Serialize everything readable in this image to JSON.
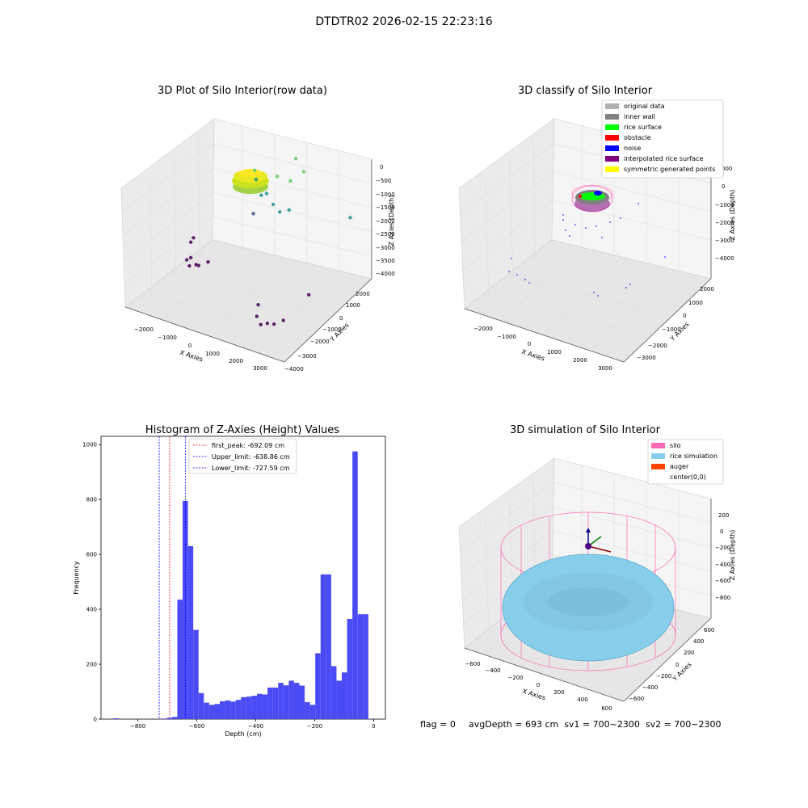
{
  "suptitle": "DTDTR02 2026-02-15 22:23:16",
  "chart_data": [
    {
      "type": "scatter",
      "title": "3D Plot of Silo Interior(row data)",
      "xlabel": "X Axies",
      "ylabel": "Y Axies",
      "zlabel": "Z Axies (Depth)",
      "x_ticks": [
        "−2000",
        "−1000",
        "0",
        "1000",
        "2000",
        "3000"
      ],
      "y_ticks": [
        "−4000",
        "−3000",
        "−2000",
        "−1000",
        "0",
        "1000",
        "2000"
      ],
      "z_ticks": [
        "0",
        "−500",
        "−1000",
        "−1500",
        "−2000",
        "−2500",
        "−3000",
        "−3500",
        "−4000"
      ],
      "xlim": [
        -2500,
        3500
      ],
      "ylim": [
        -4000,
        2500
      ],
      "zlim": [
        -4200,
        200
      ],
      "colormap": [
        "#440154",
        "#3b528b",
        "#21918c",
        "#5ec962",
        "#fde725"
      ],
      "dense_cluster": {
        "center_x": 500,
        "center_y": 500,
        "depth_range": [
          -800,
          -400
        ],
        "color": "#fde725"
      },
      "points": [
        {
          "x": -1900,
          "y": -600,
          "z": -3900
        },
        {
          "x": -1800,
          "y": -500,
          "z": -3850
        },
        {
          "x": -1700,
          "y": -800,
          "z": -3950
        },
        {
          "x": -1500,
          "y": -700,
          "z": -3900
        },
        {
          "x": -1300,
          "y": -900,
          "z": -3800
        },
        {
          "x": -1200,
          "y": -400,
          "z": -3850
        },
        {
          "x": -1900,
          "y": -300,
          "z": -3500
        },
        {
          "x": -1850,
          "y": -200,
          "z": -3400
        },
        {
          "x": 1700,
          "y": -2500,
          "z": -3900
        },
        {
          "x": 2000,
          "y": -2800,
          "z": -3950
        },
        {
          "x": 2400,
          "y": -2600,
          "z": -3900
        },
        {
          "x": 2600,
          "y": -2300,
          "z": -3850
        },
        {
          "x": 2300,
          "y": -2900,
          "z": -3800
        },
        {
          "x": 1600,
          "y": -2200,
          "z": -3700
        },
        {
          "x": 2900,
          "y": -1000,
          "z": -3500
        },
        {
          "x": -200,
          "y": 1000,
          "z": -2700
        },
        {
          "x": 300,
          "y": 600,
          "z": -1900
        },
        {
          "x": 600,
          "y": 400,
          "z": -1700
        },
        {
          "x": 900,
          "y": 300,
          "z": -1900
        },
        {
          "x": 1200,
          "y": 200,
          "z": -2000
        },
        {
          "x": 1500,
          "y": 300,
          "z": -1900
        },
        {
          "x": 0,
          "y": 800,
          "z": -1600
        },
        {
          "x": -100,
          "y": 900,
          "z": -1400
        },
        {
          "x": 800,
          "y": 800,
          "z": -1300
        },
        {
          "x": 1400,
          "y": 600,
          "z": -1200
        },
        {
          "x": 3200,
          "y": 1500,
          "z": -2100
        },
        {
          "x": 1300,
          "y": 1200,
          "z": -800
        },
        {
          "x": 1700,
          "y": 1000,
          "z": -1000
        }
      ]
    },
    {
      "type": "scatter",
      "title": "3D classify of Silo Interior",
      "xlabel": "X Axies",
      "ylabel": "Y Axies",
      "zlabel": "Z Axies (Depth)",
      "x_ticks": [
        "−2000",
        "−1000",
        "0",
        "1000",
        "2000",
        "3000"
      ],
      "y_ticks": [
        "−3000",
        "−2000",
        "−1000",
        "0",
        "1000",
        "2000"
      ],
      "z_ticks": [
        "0",
        "−1000",
        "−2000",
        "−3000",
        "−4000"
      ],
      "z_top_tick": "000",
      "legend_position": "top-right",
      "legend": [
        {
          "label": "original data",
          "color": "#b0b0b0"
        },
        {
          "label": "inner wall",
          "color": "#808080"
        },
        {
          "label": "rice surface",
          "color": "#00ff00"
        },
        {
          "label": "obstacle",
          "color": "#ff0000"
        },
        {
          "label": "noise",
          "color": "#0000ff"
        },
        {
          "label": "interpolated rice surface",
          "color": "#800080"
        },
        {
          "label": "symmetric generated points",
          "color": "#ffff00"
        }
      ]
    },
    {
      "type": "bar",
      "title": "Histogram of Z-Axies (Height) Values",
      "xlabel": "Depth (cm)",
      "ylabel": "Frequency",
      "xlim": [
        -925,
        40
      ],
      "ylim": [
        0,
        1030
      ],
      "x_ticks": [
        -800,
        -600,
        -400,
        -200,
        0
      ],
      "x_tick_labels": [
        "−800",
        "−600",
        "−400",
        "−200",
        "0"
      ],
      "y_ticks": [
        0,
        200,
        400,
        600,
        800,
        1000
      ],
      "bar_color": "#4b4bf5",
      "bin_edges_start": -900,
      "bin_width": 18,
      "values": [
        0,
        3,
        0,
        0,
        0,
        0,
        0,
        0,
        0,
        0,
        2,
        5,
        8,
        435,
        795,
        630,
        325,
        95,
        60,
        52,
        55,
        65,
        68,
        64,
        70,
        80,
        82,
        85,
        92,
        90,
        115,
        115,
        132,
        123,
        140,
        132,
        122,
        62,
        52,
        240,
        527,
        527,
        193,
        140,
        170,
        365,
        975,
        382,
        382,
        0
      ],
      "vlines": [
        {
          "label": "first_peak: -692.09 cm",
          "x": -692.09,
          "color": "#ff0000"
        },
        {
          "label": "Upper_limit: -638.86 cm",
          "x": -638.86,
          "color": "#0000ff"
        },
        {
          "label": "Lower_limit: -727.59 cm",
          "x": -727.59,
          "color": "#0000ff"
        }
      ],
      "legend_position": "upper-left"
    },
    {
      "type": "scatter",
      "title": "3D simulation of Silo Interior",
      "xlabel": "X Axies",
      "ylabel": "Y Axies",
      "zlabel": "Z Axies (Depth)",
      "x_ticks": [
        "−600",
        "−400",
        "−200",
        "0",
        "200",
        "400",
        "600"
      ],
      "y_ticks": [
        "−600",
        "−400",
        "−200",
        "0",
        "200",
        "400",
        "600"
      ],
      "z_ticks": [
        "200",
        "0",
        "−200",
        "−400",
        "−600",
        "−800"
      ],
      "legend_position": "top-right",
      "legend": [
        {
          "label": "silo",
          "color": "#ff69b4"
        },
        {
          "label": "rice simulation",
          "color": "#87ceeb"
        },
        {
          "label": "auger",
          "color": "#ff4500"
        },
        {
          "label": "center(0,0)",
          "color": "#ffffff"
        }
      ]
    }
  ],
  "footer": {
    "flag": "flag = 0",
    "stats": "avgDepth = 693 cm  sv1 = 700~2300  sv2 = 700~2300"
  }
}
